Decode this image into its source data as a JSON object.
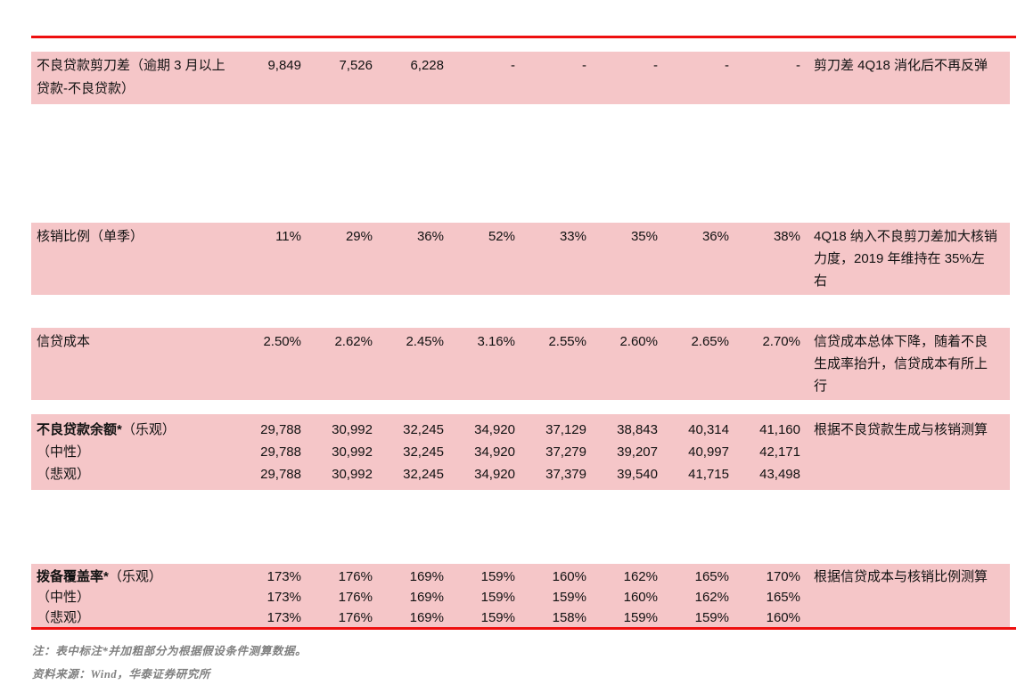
{
  "meta": {
    "colors": {
      "accent_red": "#ee0f0f",
      "row_pink": "#f5c6c8",
      "note_gray": "#808080"
    }
  },
  "table": {
    "row1": {
      "label": "不良贷款剪刀差（逾期 3 月以上贷款-不良贷款）",
      "v": [
        "9,849",
        "7,526",
        "6,228",
        "-",
        "-",
        "-",
        "-",
        "-"
      ],
      "note": "剪刀差 4Q18 消化后不再反弹"
    },
    "row2": {
      "label": "核销比例（单季）",
      "v": [
        "11%",
        "29%",
        "36%",
        "52%",
        "33%",
        "35%",
        "36%",
        "38%"
      ],
      "note": "4Q18 纳入不良剪刀差加大核销力度，2019 年维持在 35%左右"
    },
    "row3": {
      "label": "信贷成本",
      "v": [
        "2.50%",
        "2.62%",
        "2.45%",
        "3.16%",
        "2.55%",
        "2.60%",
        "2.65%",
        "2.70%"
      ],
      "note": "信贷成本总体下降，随着不良生成率抬升，信贷成本有所上行"
    },
    "group1": {
      "note": "根据不良贷款生成与核销测算",
      "r1": {
        "label_bold": "不良贷款余额*",
        "label_rest": "（乐观）",
        "v": [
          "29,788",
          "30,992",
          "32,245",
          "34,920",
          "37,129",
          "38,843",
          "40,314",
          "41,160"
        ]
      },
      "r2": {
        "label": "（中性）",
        "v": [
          "29,788",
          "30,992",
          "32,245",
          "34,920",
          "37,279",
          "39,207",
          "40,997",
          "42,171"
        ]
      },
      "r3": {
        "label": "（悲观）",
        "v": [
          "29,788",
          "30,992",
          "32,245",
          "34,920",
          "37,379",
          "39,540",
          "41,715",
          "43,498"
        ]
      }
    },
    "group2": {
      "note": "根据信贷成本与核销比例测算",
      "r1": {
        "label_bold": "拨备覆盖率*",
        "label_rest": "（乐观）",
        "v": [
          "173%",
          "176%",
          "169%",
          "159%",
          "160%",
          "162%",
          "165%",
          "170%"
        ]
      },
      "r2": {
        "label": "（中性）",
        "v": [
          "173%",
          "176%",
          "169%",
          "159%",
          "159%",
          "160%",
          "162%",
          "165%"
        ]
      },
      "r3": {
        "label": "（悲观）",
        "v": [
          "173%",
          "176%",
          "169%",
          "159%",
          "158%",
          "159%",
          "159%",
          "160%"
        ]
      }
    },
    "footnote": "注：表中标注*并加粗部分为根据假设条件测算数据。",
    "source": "资料来源：Wind，华泰证券研究所"
  }
}
